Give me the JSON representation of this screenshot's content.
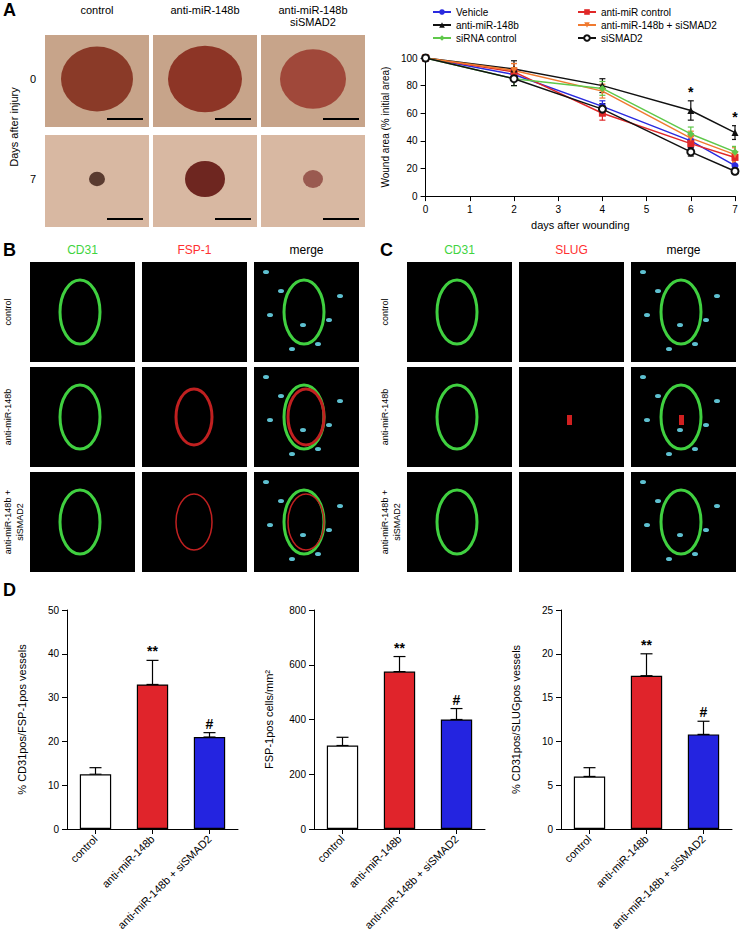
{
  "panel_labels": [
    "A",
    "B",
    "C",
    "D"
  ],
  "photos": {
    "columns": [
      "control",
      "anti-miR-148b",
      "anti-miR-148b\nsiSMAD2"
    ],
    "rows": [
      "0",
      "7"
    ],
    "row_title": "Days after injury"
  },
  "micrographs": [
    {
      "channels": [
        "CD31",
        "FSP-1",
        "merge"
      ],
      "rows": [
        "control",
        "anti-miR-148b",
        "anti-miR-148b + siSMAD2"
      ]
    },
    {
      "channels": [
        "CD31",
        "SLUG",
        "merge"
      ],
      "rows": [
        "control",
        "anti-miR-148b",
        "anti-miR-148b + siSMAD2"
      ]
    }
  ],
  "chart_data": [
    {
      "type": "line",
      "xlabel": "days after wounding",
      "ylabel": "Wound area (% initial area)",
      "x": [
        0,
        2,
        4,
        6,
        7
      ],
      "xlim": [
        0,
        7
      ],
      "xticks": [
        0,
        1,
        2,
        3,
        4,
        5,
        6,
        7
      ],
      "ylim": [
        0,
        100
      ],
      "yticks": [
        0,
        20,
        40,
        60,
        80,
        100
      ],
      "legend": "top",
      "series": [
        {
          "name": "Vehicle",
          "color": "#2a2adf",
          "marker": "circle",
          "values": [
            100,
            88,
            65,
            40,
            22
          ],
          "errors": [
            0,
            5,
            4,
            5,
            3
          ]
        },
        {
          "name": "anti-miR control",
          "color": "#e02828",
          "marker": "square",
          "values": [
            100,
            90,
            60,
            38,
            28
          ],
          "errors": [
            0,
            6,
            5,
            5,
            4
          ]
        },
        {
          "name": "anti-miR-148b",
          "color": "#111111",
          "marker": "triangle",
          "values": [
            100,
            92,
            80,
            62,
            46
          ],
          "errors": [
            0,
            6,
            5,
            7,
            5
          ]
        },
        {
          "name": "anti-miR-148b + siSMAD2",
          "color": "#f07a30",
          "marker": "triangle-down",
          "values": [
            100,
            91,
            76,
            42,
            30
          ],
          "errors": [
            0,
            5,
            5,
            5,
            5
          ]
        },
        {
          "name": "siRNA control",
          "color": "#5fc84a",
          "marker": "diamond",
          "values": [
            100,
            85,
            78,
            45,
            32
          ],
          "errors": [
            0,
            5,
            5,
            5,
            4
          ]
        },
        {
          "name": "siSMAD2",
          "color": "#111111",
          "marker": "open-circle",
          "values": [
            100,
            85,
            63,
            32,
            18
          ],
          "errors": [
            0,
            5,
            4,
            3,
            2
          ]
        }
      ],
      "annotations": [
        {
          "text": "*",
          "x": 6,
          "series": "anti-miR-148b"
        },
        {
          "text": "*",
          "x": 7,
          "series": "anti-miR-148b"
        }
      ]
    },
    {
      "type": "bar",
      "ylabel": "% CD31pos/FSP-1pos vessels",
      "categories": [
        "control",
        "anti-miR-148b",
        "anti-miR-148b + siSMAD2"
      ],
      "values": [
        12.5,
        33,
        21
      ],
      "errors": [
        1.5,
        5.5,
        1
      ],
      "colors": [
        "#ffffff",
        "#e0242b",
        "#2424e0"
      ],
      "ylim": [
        0,
        50
      ],
      "yticks": [
        0,
        10,
        20,
        30,
        40,
        50
      ],
      "annotations": [
        {
          "text": "**",
          "category": "anti-miR-148b"
        },
        {
          "text": "#",
          "category": "anti-miR-148b + siSMAD2"
        }
      ]
    },
    {
      "type": "bar",
      "ylabel": "FSP-1pos cells/mm²",
      "categories": [
        "control",
        "anti-miR-148b",
        "anti-miR-148b + siSMAD2"
      ],
      "values": [
        305,
        575,
        400
      ],
      "errors": [
        30,
        55,
        40
      ],
      "colors": [
        "#ffffff",
        "#e0242b",
        "#2424e0"
      ],
      "ylim": [
        0,
        800
      ],
      "yticks": [
        0,
        200,
        400,
        600,
        800
      ],
      "annotations": [
        {
          "text": "**",
          "category": "anti-miR-148b"
        },
        {
          "text": "#",
          "category": "anti-miR-148b + siSMAD2"
        }
      ]
    },
    {
      "type": "bar",
      "ylabel": "% CD31pos/SLUGpos vessels",
      "categories": [
        "control",
        "anti-miR-148b",
        "anti-miR-148b + siSMAD2"
      ],
      "values": [
        6,
        17.5,
        10.8
      ],
      "errors": [
        1,
        2.5,
        1.5
      ],
      "colors": [
        "#ffffff",
        "#e0242b",
        "#2424e0"
      ],
      "ylim": [
        0,
        25
      ],
      "yticks": [
        0,
        5,
        10,
        15,
        20,
        25
      ],
      "annotations": [
        {
          "text": "**",
          "category": "anti-miR-148b"
        },
        {
          "text": "#",
          "category": "anti-miR-148b + siSMAD2"
        }
      ]
    }
  ]
}
